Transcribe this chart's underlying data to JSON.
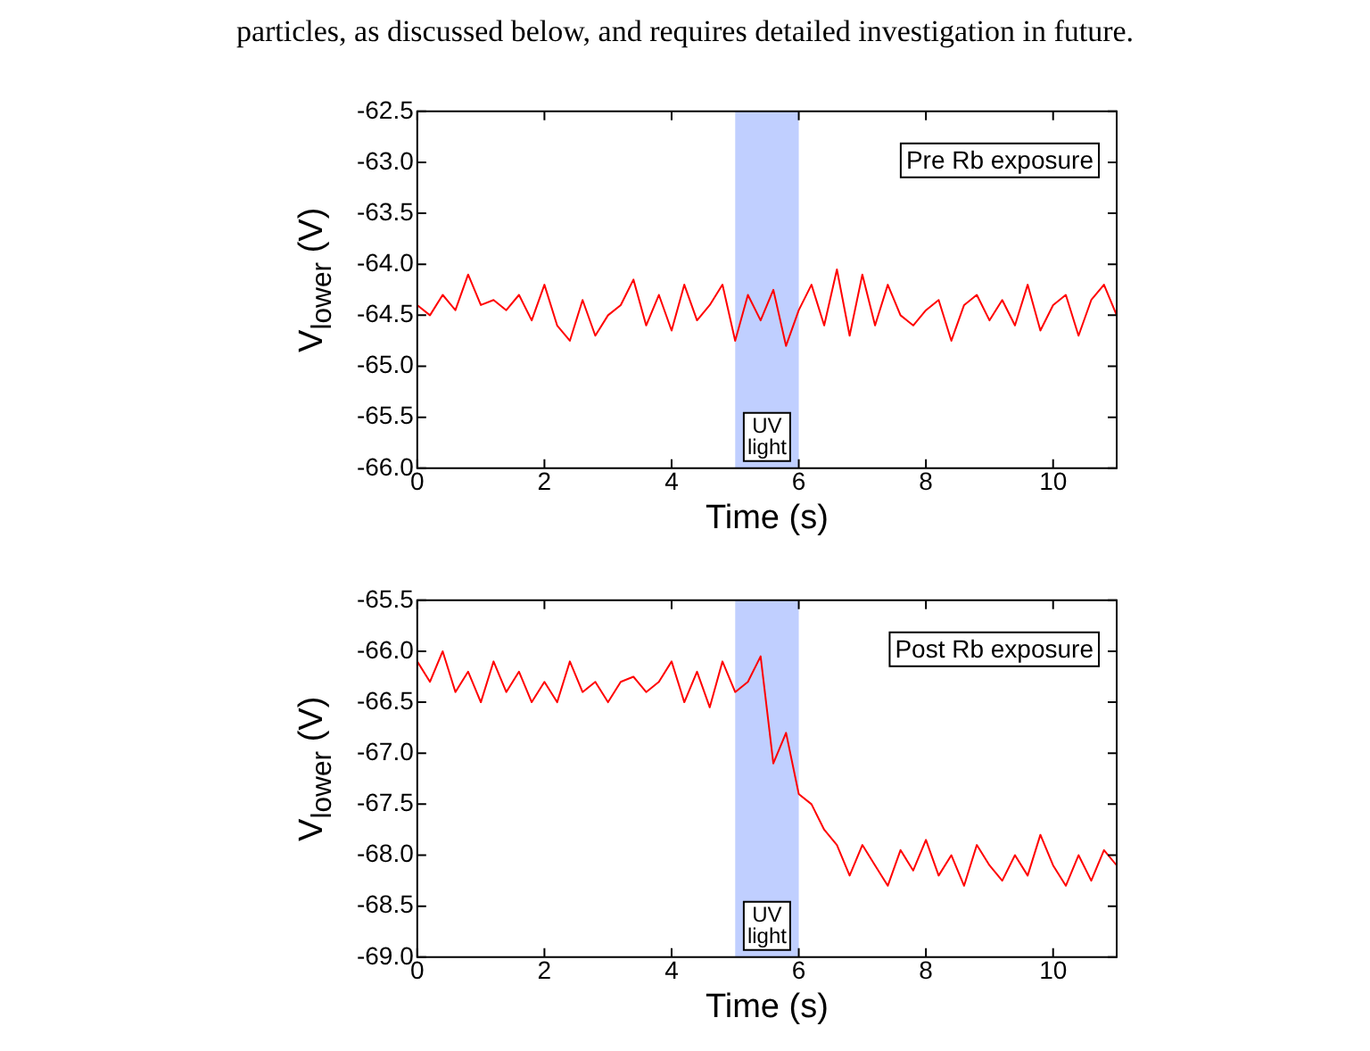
{
  "chart_data": [
    {
      "type": "line",
      "title": "particles, as discussed below, and requires detailed investigation in future.",
      "xlabel": "Time (s)",
      "ylabel": "V$_{lower}$ (V)",
      "x": [
        0,
        0.2,
        0.4,
        0.6,
        0.8,
        1,
        1.2,
        1.4,
        1.6,
        1.8,
        2,
        2.2,
        2.4,
        2.6,
        2.8,
        3,
        3.2,
        3.4,
        3.6,
        3.8,
        4,
        4.2,
        4.4,
        4.6,
        4.8,
        5,
        5.2,
        5.4,
        5.6,
        5.8,
        6,
        6.2,
        6.4,
        6.6,
        6.8,
        7,
        7.2,
        7.4,
        7.6,
        7.8,
        8,
        8.2,
        8.4,
        8.6,
        8.8,
        9,
        9.2,
        9.4,
        9.6,
        9.8,
        10,
        10.2,
        10.4,
        10.6,
        10.8,
        11
      ],
      "series": [
        {
          "color": "#ff0000",
          "values": [
            -64.4,
            -64.5,
            -64.3,
            -64.45,
            -64.1,
            -64.4,
            -64.35,
            -64.45,
            -64.3,
            -64.55,
            -64.2,
            -64.6,
            -64.75,
            -64.35,
            -64.7,
            -64.5,
            -64.4,
            -64.15,
            -64.6,
            -64.3,
            -64.65,
            -64.2,
            -64.55,
            -64.4,
            -64.2,
            -64.75,
            -64.3,
            -64.55,
            -64.25,
            -64.8,
            -64.45,
            -64.2,
            -64.6,
            -64.05,
            -64.7,
            -64.1,
            -64.6,
            -64.2,
            -64.5,
            -64.6,
            -64.45,
            -64.35,
            -64.75,
            -64.4,
            -64.3,
            -64.55,
            -64.35,
            -64.6,
            -64.2,
            -64.65,
            -64.4,
            -64.3,
            -64.7,
            -64.35,
            -64.2,
            -64.5
          ]
        }
      ],
      "xlim": [
        0,
        11
      ],
      "xticks": [
        0,
        2,
        4,
        6,
        8,
        10
      ],
      "ylim": [
        -66,
        -62.5
      ],
      "yticks": [
        {
          "value": -62.5,
          "label": "-62.5"
        },
        {
          "value": -63,
          "label": "-63.0"
        },
        {
          "value": -63.5,
          "label": "-63.5"
        },
        {
          "value": -64,
          "label": "-64.0"
        },
        {
          "value": -64.5,
          "label": "-64.5"
        },
        {
          "value": -65,
          "label": "-65.0"
        },
        {
          "value": -65.5,
          "label": "-65.5"
        },
        {
          "value": -66,
          "label": "-66.0"
        }
      ],
      "bands": [
        {
          "axis": "x",
          "from": 5,
          "to": 6,
          "label": "UV light",
          "color": "#c0cfff"
        }
      ],
      "annotations": [
        "Pre Rb exposure"
      ],
      "grid": false,
      "legend": false,
      "marker": "none",
      "line_style": "solid"
    },
    {
      "type": "line",
      "xlabel": "Time (s)",
      "ylabel": "V$_{lower}$ (V)",
      "x": [
        0,
        0.2,
        0.4,
        0.6,
        0.8,
        1,
        1.2,
        1.4,
        1.6,
        1.8,
        2,
        2.2,
        2.4,
        2.6,
        2.8,
        3,
        3.2,
        3.4,
        3.6,
        3.8,
        4,
        4.2,
        4.4,
        4.6,
        4.8,
        5,
        5.2,
        5.4,
        5.6,
        5.8,
        6,
        6.2,
        6.4,
        6.6,
        6.8,
        7,
        7.2,
        7.4,
        7.6,
        7.8,
        8,
        8.2,
        8.4,
        8.6,
        8.8,
        9,
        9.2,
        9.4,
        9.6,
        9.8,
        10,
        10.2,
        10.4,
        10.6,
        10.8,
        11
      ],
      "series": [
        {
          "color": "#ff0000",
          "values": [
            -66.1,
            -66.3,
            -66.0,
            -66.4,
            -66.2,
            -66.5,
            -66.1,
            -66.4,
            -66.2,
            -66.5,
            -66.3,
            -66.5,
            -66.1,
            -66.4,
            -66.3,
            -66.5,
            -66.3,
            -66.25,
            -66.4,
            -66.3,
            -66.1,
            -66.5,
            -66.2,
            -66.55,
            -66.1,
            -66.4,
            -66.3,
            -66.05,
            -67.1,
            -66.8,
            -67.4,
            -67.5,
            -67.75,
            -67.9,
            -68.2,
            -67.9,
            -68.1,
            -68.3,
            -67.95,
            -68.15,
            -67.85,
            -68.2,
            -68.0,
            -68.3,
            -67.9,
            -68.1,
            -68.25,
            -68.0,
            -68.2,
            -67.8,
            -68.1,
            -68.3,
            -68.0,
            -68.25,
            -67.95,
            -68.1
          ]
        }
      ],
      "xlim": [
        0,
        11
      ],
      "xticks": [
        0,
        2,
        4,
        6,
        8,
        10
      ],
      "ylim": [
        -69,
        -65.5
      ],
      "yticks": [
        {
          "value": -65.5,
          "label": "-65.5"
        },
        {
          "value": -66,
          "label": "-66.0"
        },
        {
          "value": -66.5,
          "label": "-66.5"
        },
        {
          "value": -67,
          "label": "-67.0"
        },
        {
          "value": -67.5,
          "label": "-67.5"
        },
        {
          "value": -68,
          "label": "-68.0"
        },
        {
          "value": -68.5,
          "label": "-68.5"
        },
        {
          "value": -69,
          "label": "-69.0"
        }
      ],
      "bands": [
        {
          "axis": "x",
          "from": 5,
          "to": 6,
          "label": "UV light",
          "color": "#c0cfff"
        }
      ],
      "annotations": [
        "Post Rb exposure"
      ],
      "grid": false,
      "legend": false,
      "marker": "none",
      "line_style": "solid"
    }
  ]
}
